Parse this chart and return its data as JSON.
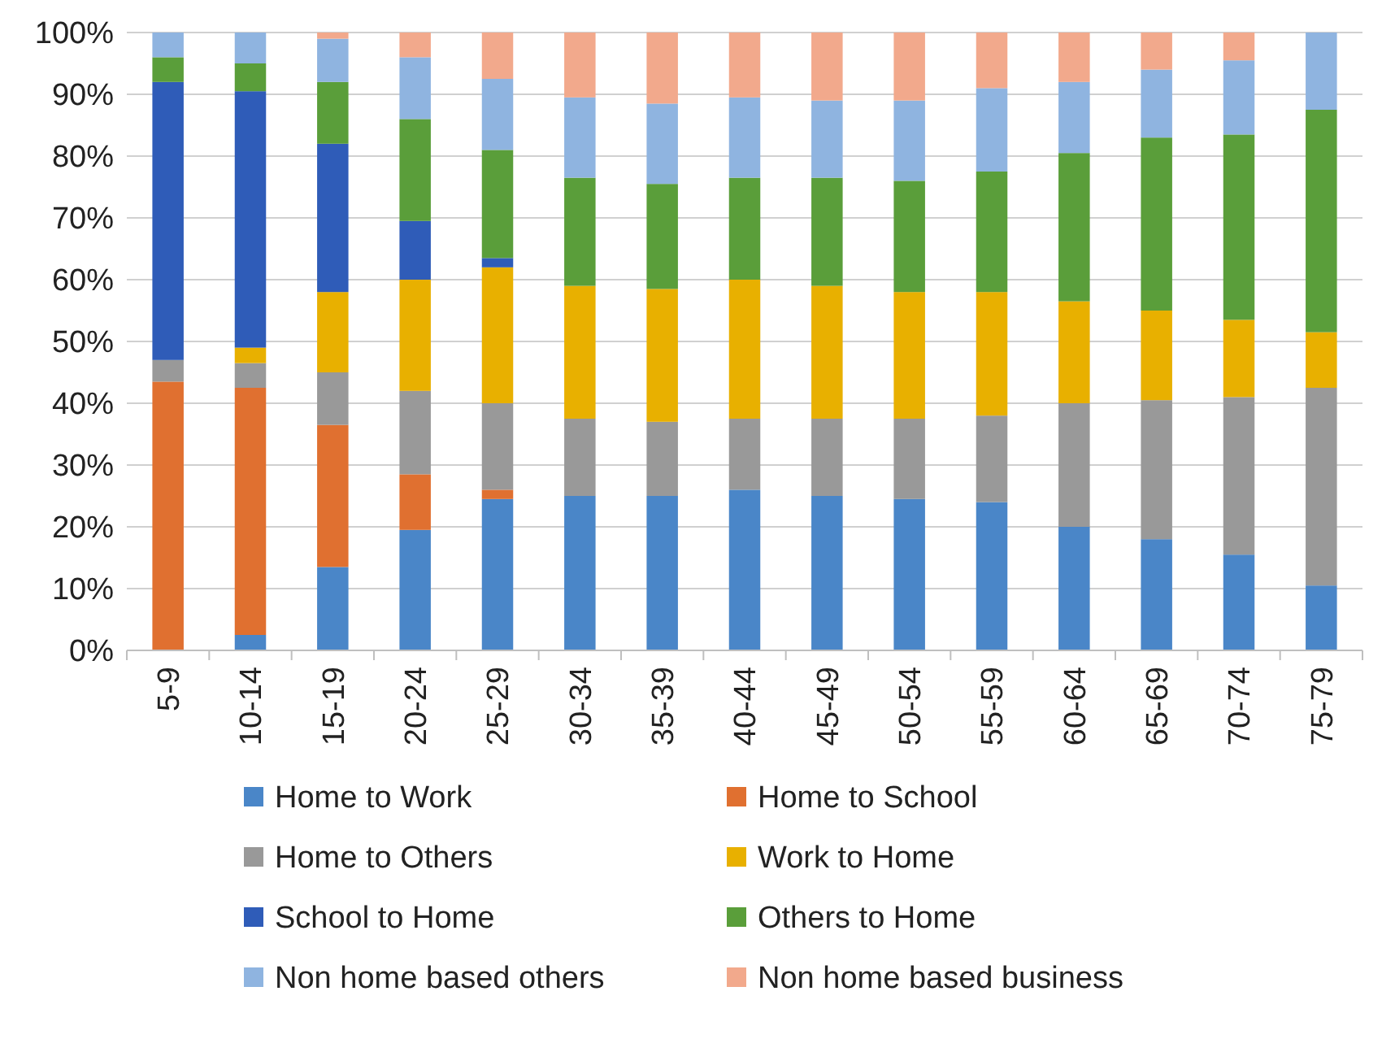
{
  "chart_data": {
    "type": "bar",
    "stacked": true,
    "categories": [
      "5-9",
      "10-14",
      "15-19",
      "20-24",
      "25-29",
      "30-34",
      "35-39",
      "40-44",
      "45-49",
      "50-54",
      "55-59",
      "60-64",
      "65-69",
      "70-74",
      "75-79"
    ],
    "series": [
      {
        "name": "Home to Work",
        "color": "#4a86c8",
        "values": [
          0,
          2.5,
          13.5,
          19.5,
          24.5,
          25,
          25,
          26,
          25,
          24.5,
          24,
          20,
          18,
          15.5,
          10.5
        ]
      },
      {
        "name": "Home to School",
        "color": "#e07030",
        "values": [
          43.5,
          40,
          23,
          9,
          1.5,
          0,
          0,
          0,
          0,
          0,
          0,
          0,
          0,
          0,
          0
        ]
      },
      {
        "name": "Home to Others",
        "color": "#999999",
        "values": [
          3.5,
          4,
          8.5,
          13.5,
          14,
          12.5,
          12,
          11.5,
          12.5,
          13,
          14,
          20,
          22.5,
          25.5,
          32
        ]
      },
      {
        "name": "Work to Home",
        "color": "#e8b000",
        "values": [
          0,
          2.5,
          13,
          18,
          22,
          21.5,
          21.5,
          22.5,
          21.5,
          20.5,
          20,
          16.5,
          14.5,
          12.5,
          9
        ]
      },
      {
        "name": "School to Home",
        "color": "#2f5cb8",
        "values": [
          45,
          41.5,
          24,
          9.5,
          1.5,
          0,
          0,
          0,
          0,
          0,
          0,
          0,
          0,
          0,
          0
        ]
      },
      {
        "name": "Others to Home",
        "color": "#5a9e3a",
        "values": [
          4,
          4.5,
          10,
          16.5,
          17.5,
          17.5,
          17,
          16.5,
          17.5,
          18,
          19.5,
          24,
          28,
          30,
          36
        ]
      },
      {
        "name": "Non home based others",
        "color": "#8fb4e0",
        "values": [
          4,
          5,
          7,
          10,
          11.5,
          13,
          13,
          13,
          12.5,
          13,
          13.5,
          11.5,
          11,
          12,
          12.5
        ]
      },
      {
        "name": "Non home based business",
        "color": "#f2a98c",
        "values": [
          0,
          0,
          1,
          4,
          7.5,
          10.5,
          11.5,
          10.5,
          11,
          11,
          9,
          8,
          6,
          4.5,
          0
        ]
      }
    ],
    "ylim": [
      0,
      100
    ],
    "yticks": [
      {
        "value": 0,
        "label": "0%"
      },
      {
        "value": 10,
        "label": "10%"
      },
      {
        "value": 20,
        "label": "20%"
      },
      {
        "value": 30,
        "label": "30%"
      },
      {
        "value": 40,
        "label": "40%"
      },
      {
        "value": 50,
        "label": "50%"
      },
      {
        "value": 60,
        "label": "60%"
      },
      {
        "value": 70,
        "label": "70%"
      },
      {
        "value": 80,
        "label": "80%"
      },
      {
        "value": 90,
        "label": "90%"
      },
      {
        "value": 100,
        "label": "100%"
      }
    ],
    "grid": "y",
    "legend": "bottom"
  }
}
